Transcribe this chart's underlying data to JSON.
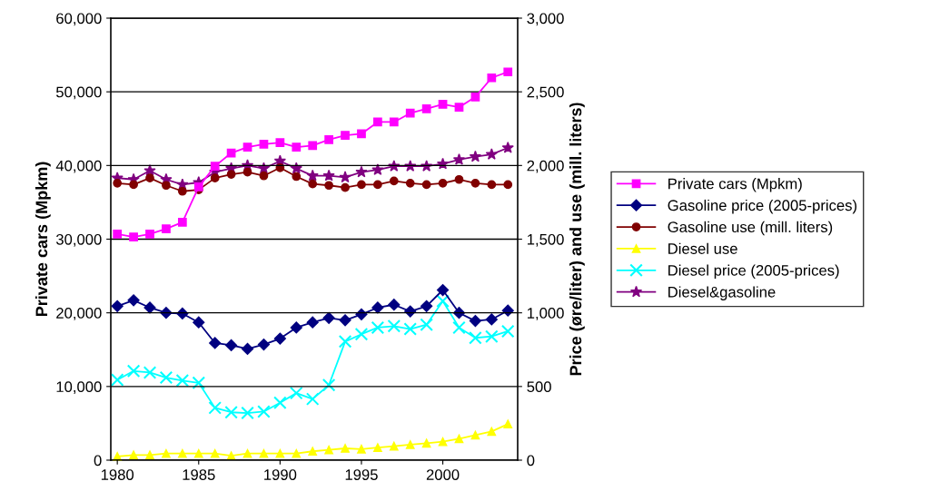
{
  "chart_data": {
    "type": "line",
    "xlabel": null,
    "ylabel": "Private cars (Mpkm)",
    "y2label": "Price (øre/liter) and use (mill. liters)",
    "x": [
      1980,
      1981,
      1982,
      1983,
      1984,
      1985,
      1986,
      1987,
      1988,
      1989,
      1990,
      1991,
      1992,
      1993,
      1994,
      1995,
      1996,
      1997,
      1998,
      1999,
      2000,
      2001,
      2002,
      2003,
      2004
    ],
    "xlim": [
      1979.6,
      2004.6
    ],
    "xticks": [
      1980,
      1985,
      1990,
      1995,
      2000
    ],
    "ylim": [
      0,
      60000
    ],
    "yticks": [
      {
        "value": 0,
        "label": "0"
      },
      {
        "value": 10000,
        "label": "10,000"
      },
      {
        "value": 20000,
        "label": "20,000"
      },
      {
        "value": 30000,
        "label": "30,000"
      },
      {
        "value": 40000,
        "label": "40,000"
      },
      {
        "value": 50000,
        "label": "50,000"
      },
      {
        "value": 60000,
        "label": "60,000"
      }
    ],
    "y2lim": [
      0,
      3000
    ],
    "y2ticks": [
      {
        "value": 0,
        "label": "0"
      },
      {
        "value": 500,
        "label": "500"
      },
      {
        "value": 1000,
        "label": "1,000"
      },
      {
        "value": 1500,
        "label": "1,500"
      },
      {
        "value": 2000,
        "label": "2,000"
      },
      {
        "value": 2500,
        "label": "2,500"
      },
      {
        "value": 3000,
        "label": "3,000"
      }
    ],
    "grid": "y",
    "legend": "right",
    "series": [
      {
        "name": "Private cars (Mpkm)",
        "color": "#ff00ff",
        "marker": "square",
        "values": [
          30700,
          30300,
          30700,
          31400,
          32300,
          37100,
          39900,
          41700,
          42500,
          42900,
          43100,
          42500,
          42700,
          43500,
          44100,
          44300,
          45900,
          45900,
          47100,
          47700,
          48300,
          47900,
          49300,
          51900,
          52700
        ]
      },
      {
        "name": "Gasoline price (2005-prices)",
        "color": "#000080",
        "marker": "diamond",
        "axis": "y2",
        "values": [
          1045,
          1085,
          1035,
          1000,
          995,
          935,
          795,
          780,
          755,
          785,
          825,
          900,
          935,
          965,
          950,
          990,
          1035,
          1055,
          1010,
          1045,
          1155,
          1000,
          945,
          955,
          1015
        ]
      },
      {
        "name": "Gasoline use (mill. liters)",
        "color": "#800000",
        "marker": "circle",
        "axis": "y2",
        "values": [
          1880,
          1870,
          1915,
          1865,
          1825,
          1835,
          1915,
          1940,
          1955,
          1930,
          1985,
          1925,
          1875,
          1865,
          1850,
          1870,
          1870,
          1895,
          1880,
          1870,
          1880,
          1905,
          1880,
          1870,
          1870
        ]
      },
      {
        "name": "Diesel use",
        "color": "#ffff00",
        "marker": "triangle",
        "axis": "y2",
        "values": [
          25,
          35,
          35,
          45,
          45,
          45,
          45,
          30,
          45,
          45,
          45,
          45,
          60,
          70,
          80,
          75,
          85,
          95,
          105,
          115,
          125,
          145,
          170,
          195,
          245
        ]
      },
      {
        "name": "Diesel price (2005-prices)",
        "color": "#00ffff",
        "marker": "cross",
        "axis": "y2",
        "values": [
          545,
          605,
          595,
          560,
          540,
          525,
          355,
          325,
          320,
          330,
          390,
          455,
          415,
          510,
          805,
          855,
          900,
          910,
          890,
          920,
          1080,
          900,
          830,
          840,
          875
        ]
      },
      {
        "name": "Diesel&gasoline",
        "color": "#800080",
        "marker": "star",
        "axis": "y2",
        "values": [
          1915,
          1905,
          1965,
          1905,
          1870,
          1885,
          1955,
          1980,
          2000,
          1980,
          2030,
          1980,
          1930,
          1930,
          1920,
          1955,
          1970,
          1995,
          1995,
          1995,
          2010,
          2040,
          2060,
          2075,
          2120
        ]
      }
    ]
  }
}
